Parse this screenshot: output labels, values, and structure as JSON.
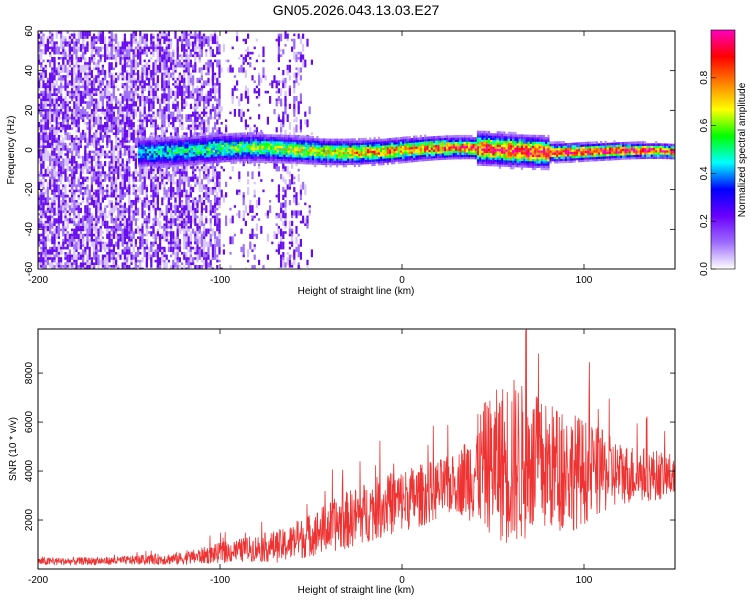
{
  "figure": {
    "title": "GN05.2026.043.13.03.E27"
  },
  "chart_data": [
    {
      "type": "heatmap",
      "xlabel": "Height of straight line (km)",
      "ylabel": "Frequency (Hz)",
      "xlim": [
        -200,
        150
      ],
      "ylim": [
        -60,
        60
      ],
      "x_ticks": [
        -200,
        -100,
        0,
        100
      ],
      "y_ticks": [
        -60,
        -40,
        -20,
        0,
        20,
        40,
        60
      ],
      "grid": false,
      "description_regions": {
        "dense_noise_x_range": [
          -200,
          -100
        ],
        "sparse_noise_x_range": [
          -100,
          -50
        ],
        "signal_x_range": [
          -145,
          150
        ],
        "signal_center_frequency": 0
      },
      "colorbar": {
        "label": "Normalized spectral amplitude",
        "range": [
          0.0,
          1.0
        ],
        "ticks": [
          0.0,
          0.2,
          0.4,
          0.6,
          0.8
        ],
        "tick_labels": [
          "0.0",
          "0.2",
          "0.4",
          "0.6",
          "0.8"
        ],
        "colors": [
          "#ffffff",
          "#9d6bff",
          "#6a00ff",
          "#0000ff",
          "#00ffff",
          "#00ff00",
          "#ffff00",
          "#ff8000",
          "#ff0000",
          "#ff00c0"
        ]
      }
    },
    {
      "type": "line",
      "xlabel": "Height of straight line (km)",
      "ylabel": "SNR (10 * v/v)",
      "xlim": [
        -200,
        150
      ],
      "ylim": [
        0,
        9800
      ],
      "x_ticks": [
        -200,
        -100,
        0,
        100
      ],
      "y_ticks": [
        2000,
        4000,
        6000,
        8000
      ],
      "grid": false,
      "series_color": "#ee3333",
      "series": [
        {
          "name": "SNR",
          "envelope_points": [
            {
              "x": -200,
              "mean": 300,
              "spread": 160
            },
            {
              "x": -160,
              "mean": 330,
              "spread": 160
            },
            {
              "x": -120,
              "mean": 430,
              "spread": 260
            },
            {
              "x": -100,
              "mean": 650,
              "spread": 420
            },
            {
              "x": -80,
              "mean": 850,
              "spread": 550
            },
            {
              "x": -65,
              "mean": 950,
              "spread": 700
            },
            {
              "x": -50,
              "mean": 1400,
              "spread": 900
            },
            {
              "x": -30,
              "mean": 2000,
              "spread": 1200
            },
            {
              "x": -10,
              "mean": 2600,
              "spread": 1300
            },
            {
              "x": 10,
              "mean": 3000,
              "spread": 1300
            },
            {
              "x": 30,
              "mean": 3500,
              "spread": 1200
            },
            {
              "x": 45,
              "mean": 4200,
              "spread": 2600
            },
            {
              "x": 60,
              "mean": 4400,
              "spread": 3600
            },
            {
              "x": 75,
              "mean": 4200,
              "spread": 2800
            },
            {
              "x": 95,
              "mean": 4000,
              "spread": 2400
            },
            {
              "x": 120,
              "mean": 3900,
              "spread": 1300
            },
            {
              "x": 150,
              "mean": 3800,
              "spread": 900
            }
          ]
        }
      ]
    }
  ]
}
